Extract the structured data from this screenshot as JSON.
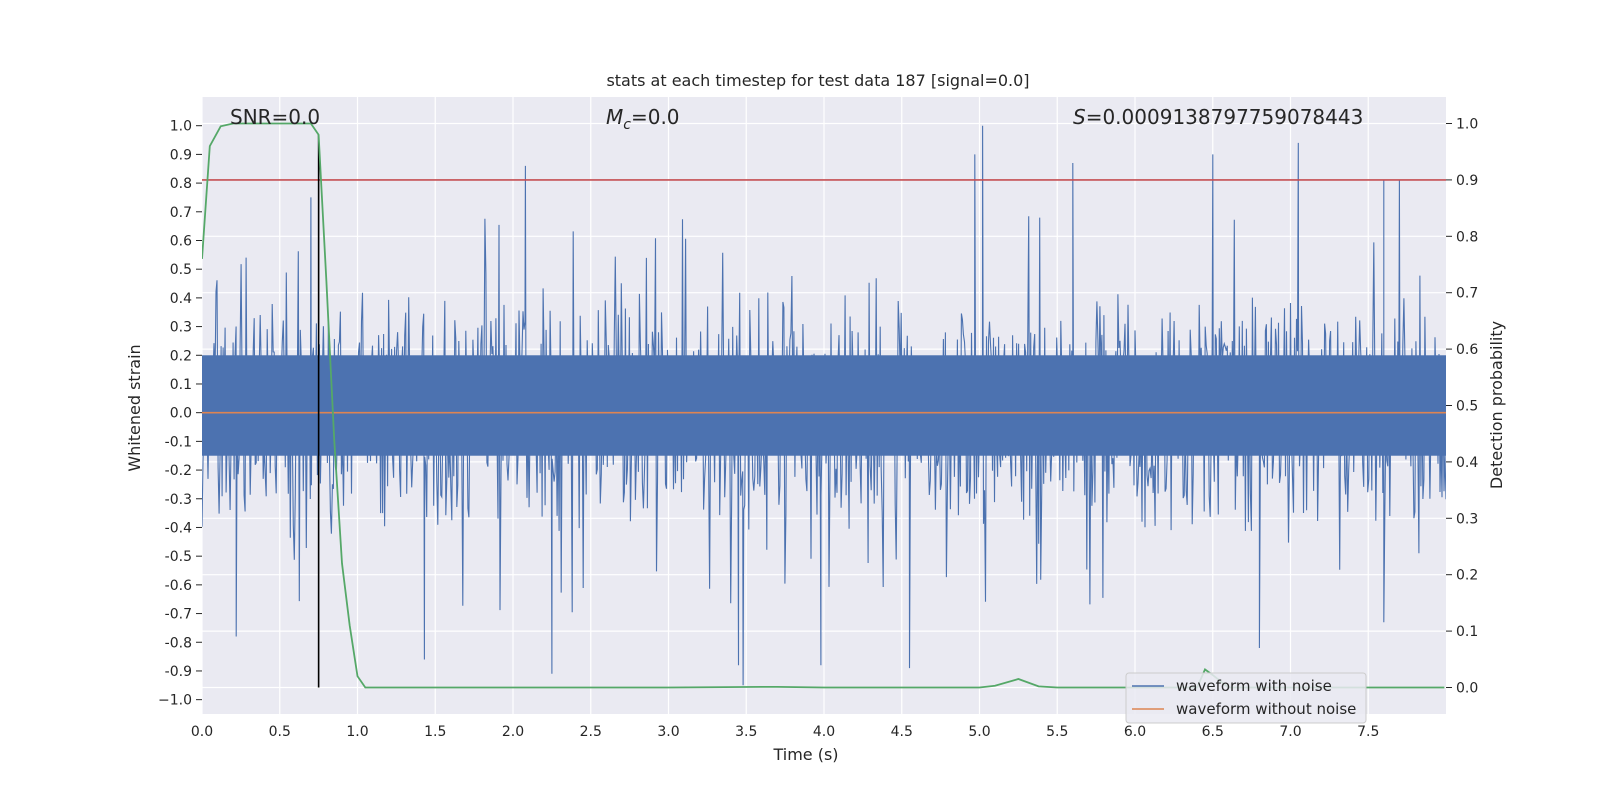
{
  "chart_data": {
    "type": "line",
    "title": "stats at each timestep for test data 187 [signal=0.0]",
    "xlabel": "Time (s)",
    "ylabel_left": "Whitened strain",
    "ylabel_right": "Detection probability",
    "xlim": [
      0.0,
      8.0
    ],
    "ylim_left": [
      -1.05,
      1.1
    ],
    "ylim_right": [
      -0.047,
      1.047
    ],
    "x_ticks": [
      0.0,
      0.5,
      1.0,
      1.5,
      2.0,
      2.5,
      3.0,
      3.5,
      4.0,
      4.5,
      5.0,
      5.5,
      6.0,
      6.5,
      7.0,
      7.5
    ],
    "x_tick_labels": [
      "0.0",
      "0.5",
      "1.0",
      "1.5",
      "2.0",
      "2.5",
      "3.0",
      "3.5",
      "4.0",
      "4.5",
      "5.0",
      "5.5",
      "6.0",
      "6.5",
      "7.0",
      "7.5"
    ],
    "y_left_ticks": [
      1.0,
      0.9,
      0.8,
      0.7,
      0.6,
      0.5,
      0.4,
      0.3,
      0.2,
      0.1,
      0.0,
      -0.1,
      -0.2,
      -0.3,
      -0.4,
      -0.5,
      -0.6,
      -0.7,
      -0.8,
      -0.9,
      -1.0
    ],
    "y_left_tick_labels": [
      "1.0",
      "0.9",
      "0.8",
      "0.7",
      "0.6",
      "0.5",
      "0.4",
      "0.3",
      "0.2",
      "0.1",
      "0.0",
      "-0.1",
      "-0.2",
      "-0.3",
      "-0.4",
      "-0.5",
      "-0.6",
      "-0.7",
      "-0.8",
      "-0.9",
      "−1.0"
    ],
    "y_right_ticks": [
      1.0,
      0.9,
      0.8,
      0.7,
      0.6,
      0.5,
      0.4,
      0.3,
      0.2,
      0.1,
      0.0
    ],
    "y_right_tick_labels": [
      "1.0",
      "0.9",
      "0.8",
      "0.7",
      "0.6",
      "0.5",
      "0.4",
      "0.3",
      "0.2",
      "0.1",
      "0.0"
    ],
    "annotations": {
      "snr": "SNR=0.0",
      "mc_symbol": "M",
      "mc_subscript": "c",
      "mc_value": "=0.0",
      "s_symbol": "S",
      "s_value": "=0.0009138797759078443"
    },
    "threshold_probability": 0.9,
    "vertical_marker_time": 0.75,
    "grid": true,
    "legend_position": "lower-right",
    "series": [
      {
        "name": "waveform with noise",
        "axis": "left",
        "color": "#4c72b0",
        "noise_band": {
          "t_start": 0.0,
          "t_end": 8.0,
          "envelope_typical": 0.45,
          "max_peak": 1.0,
          "min_peak": -0.95
        },
        "peaks": [
          {
            "t": 2.08,
            "v": 0.86
          },
          {
            "t": 4.97,
            "v": 0.9
          },
          {
            "t": 5.02,
            "v": 1.0
          },
          {
            "t": 5.6,
            "v": 0.87
          },
          {
            "t": 6.5,
            "v": 0.9
          },
          {
            "t": 7.05,
            "v": 0.94
          },
          {
            "t": 7.6,
            "v": 0.81
          },
          {
            "t": 7.7,
            "v": 0.81
          },
          {
            "t": 0.7,
            "v": 0.75
          },
          {
            "t": 0.22,
            "v": -0.78
          },
          {
            "t": 1.43,
            "v": -0.86
          },
          {
            "t": 2.25,
            "v": -0.91
          },
          {
            "t": 3.45,
            "v": -0.88
          },
          {
            "t": 3.48,
            "v": -0.95
          },
          {
            "t": 3.98,
            "v": -0.88
          },
          {
            "t": 4.55,
            "v": -0.89
          },
          {
            "t": 6.8,
            "v": -0.82
          },
          {
            "t": 7.6,
            "v": -0.73
          }
        ]
      },
      {
        "name": "waveform without noise",
        "axis": "left",
        "color": "#dd8452",
        "x": [
          0.0,
          8.0
        ],
        "y": [
          0.0,
          0.0
        ]
      },
      {
        "name": "detection probability",
        "axis": "right",
        "color": "#55a868",
        "x": [
          0.0,
          0.05,
          0.12,
          0.2,
          0.3,
          0.5,
          0.7,
          0.75,
          0.8,
          0.85,
          0.9,
          0.95,
          1.0,
          1.05,
          1.1,
          1.5,
          3.0,
          3.6,
          3.7,
          4.0,
          5.0,
          5.1,
          5.25,
          5.38,
          5.5,
          6.0,
          6.4,
          6.45,
          6.5,
          6.6,
          7.0,
          7.99
        ],
        "y": [
          0.76,
          0.96,
          0.995,
          1.0,
          1.0,
          1.0,
          1.0,
          0.98,
          0.72,
          0.44,
          0.22,
          0.11,
          0.02,
          0.0,
          0.0,
          0.0,
          0.0,
          0.001,
          0.001,
          0.0,
          0.0,
          0.003,
          0.015,
          0.002,
          0.0,
          0.0,
          0.0,
          0.032,
          0.022,
          0.0,
          0.0,
          0.0
        ]
      }
    ]
  }
}
